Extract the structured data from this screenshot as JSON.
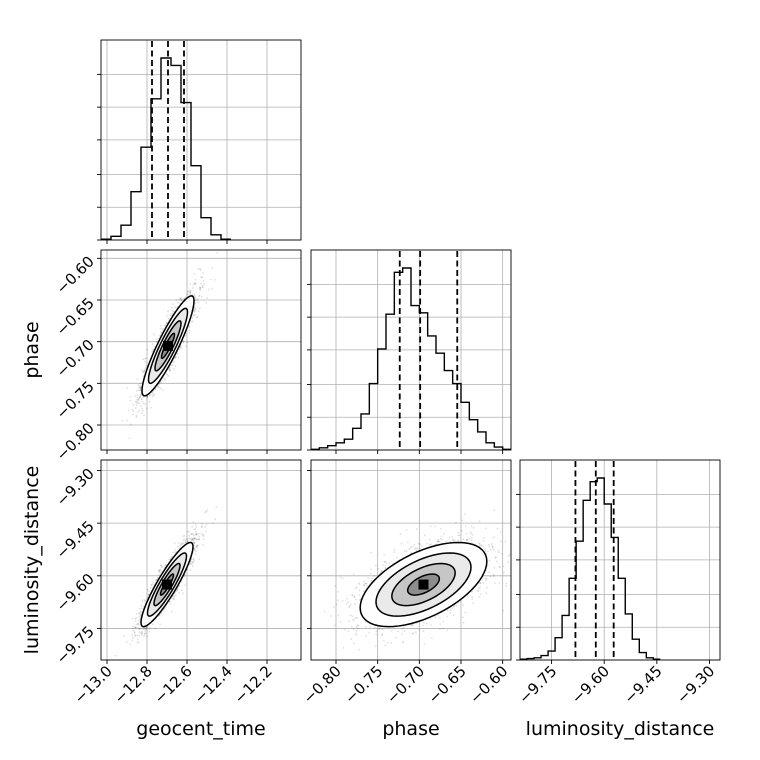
{
  "chart_data": {
    "type": "corner",
    "grid": true,
    "parameters": [
      "geocent_time",
      "phase",
      "luminosity_distance"
    ],
    "axes": {
      "geocent_time": {
        "range": [
          -13.03,
          -12.03
        ],
        "ticks": [
          -13.0,
          -12.8,
          -12.6,
          -12.4,
          -12.2
        ],
        "tick_labels": [
          "−13.0",
          "−12.8",
          "−12.6",
          "−12.4",
          "−12.2"
        ]
      },
      "phase": {
        "range": [
          -0.83,
          -0.59
        ],
        "ticks": [
          -0.8,
          -0.75,
          -0.7,
          -0.65,
          -0.6
        ],
        "tick_labels": [
          "−0.80",
          "−0.75",
          "−0.70",
          "−0.65",
          "−0.60"
        ]
      },
      "luminosity_distance": {
        "range": [
          -9.84,
          -9.27
        ],
        "ticks": [
          -9.75,
          -9.6,
          -9.45,
          -9.3
        ],
        "tick_labels": [
          "−9.75",
          "−9.60",
          "−9.45",
          "−9.30"
        ]
      }
    },
    "histograms": {
      "geocent_time": {
        "bin_edges": [
          -13.03,
          -12.98,
          -12.93,
          -12.88,
          -12.83,
          -12.78,
          -12.73,
          -12.68,
          -12.63,
          -12.58,
          -12.53,
          -12.48,
          -12.43,
          -12.38
        ],
        "counts": [
          1,
          5,
          20,
          65,
          125,
          190,
          245,
          235,
          185,
          100,
          30,
          7,
          1
        ],
        "quantiles": [
          -12.775,
          -12.695,
          -12.615
        ]
      },
      "phase": {
        "bin_edges": [
          -0.83,
          -0.82,
          -0.81,
          -0.8,
          -0.79,
          -0.78,
          -0.77,
          -0.76,
          -0.75,
          -0.74,
          -0.73,
          -0.72,
          -0.71,
          -0.7,
          -0.69,
          -0.68,
          -0.67,
          -0.66,
          -0.65,
          -0.64,
          -0.63,
          -0.62,
          -0.61,
          -0.6,
          -0.59
        ],
        "counts": [
          1,
          3,
          6,
          10,
          15,
          30,
          50,
          92,
          140,
          188,
          246,
          252,
          200,
          190,
          158,
          134,
          110,
          92,
          66,
          42,
          25,
          10,
          4,
          1
        ],
        "quantiles": [
          -0.7235,
          -0.699,
          -0.6545
        ]
      },
      "luminosity_distance": {
        "bin_edges": [
          -9.84,
          -9.82,
          -9.8,
          -9.78,
          -9.76,
          -9.74,
          -9.72,
          -9.7,
          -9.68,
          -9.66,
          -9.64,
          -9.62,
          -9.6,
          -9.58,
          -9.56,
          -9.54,
          -9.52,
          -9.5,
          -9.48,
          -9.46,
          -9.44
        ],
        "counts": [
          1,
          2,
          3,
          6,
          12,
          30,
          60,
          110,
          160,
          215,
          240,
          245,
          210,
          165,
          110,
          62,
          28,
          10,
          3,
          1
        ],
        "quantiles": [
          -9.682,
          -9.624,
          -9.573
        ]
      }
    },
    "joint_densities": [
      {
        "x": "geocent_time",
        "y": "phase",
        "mean": [
          -12.695,
          -0.705
        ],
        "sd": [
          0.065,
          0.03
        ],
        "correlation": 0.9
      },
      {
        "x": "geocent_time",
        "y": "luminosity_distance",
        "mean": [
          -12.7,
          -9.625
        ],
        "sd": [
          0.065,
          0.06
        ],
        "correlation": 0.9
      },
      {
        "x": "phase",
        "y": "luminosity_distance",
        "mean": [
          -0.695,
          -9.625
        ],
        "sd": [
          0.038,
          0.06
        ],
        "correlation": 0.55
      }
    ],
    "contour_levels_sigma": [
      0.5,
      1.0,
      1.5,
      2.0
    ]
  }
}
